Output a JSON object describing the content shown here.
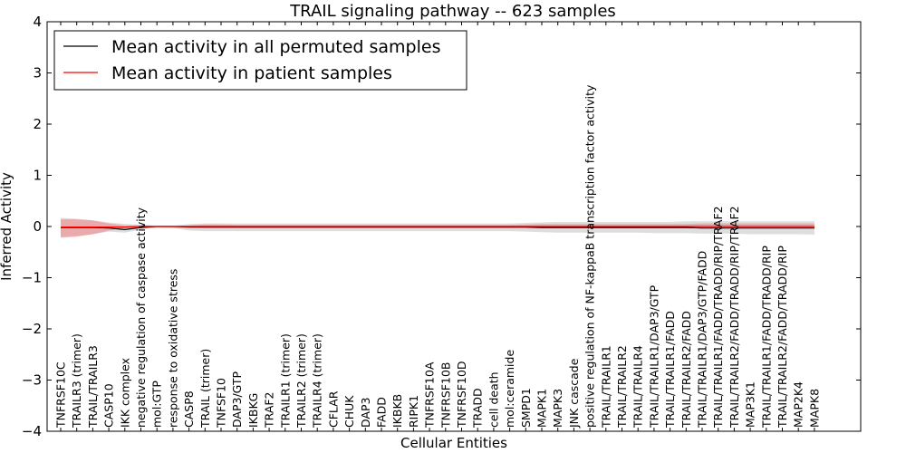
{
  "chart_data": {
    "type": "line",
    "title": "TRAIL signaling pathway -- 623 samples",
    "xlabel": "Cellular Entities",
    "ylabel": "Inferred Activity",
    "ylim": [
      -4,
      4
    ],
    "yticks": [
      -4,
      -3,
      -2,
      -1,
      0,
      1,
      2,
      3,
      4
    ],
    "ytick_labels": [
      "−4",
      "−3",
      "−2",
      "−1",
      "0",
      "1",
      "2",
      "3",
      "4"
    ],
    "legend_position": "top-left",
    "categories": [
      "TNFRSF10C",
      "TRAILR3 (trimer)",
      "TRAIL/TRAILR3",
      "CASP10",
      "IKK complex",
      "negative regulation of caspase activity",
      "mol:GTP",
      "response to oxidative stress",
      "CASP8",
      "TRAIL (trimer)",
      "TNFSF10",
      "DAP3/GTP",
      "IKBKG",
      "TRAF2",
      "TRAILR1 (trimer)",
      "TRAILR2 (trimer)",
      "TRAILR4 (trimer)",
      "CFLAR",
      "CHUK",
      "DAP3",
      "FADD",
      "IKBKB",
      "RIPK1",
      "TNFRSF10A",
      "TNFRSF10B",
      "TNFRSF10D",
      "TRADD",
      "cell death",
      "mol:ceramide",
      "SMPD1",
      "MAPK1",
      "MAPK3",
      "JNK cascade",
      "positive regulation of NF-kappaB transcription factor activity",
      "TRAIL/TRAILR1",
      "TRAIL/TRAILR2",
      "TRAIL/TRAILR4",
      "TRAIL/TRAILR1/DAP3/GTP",
      "TRAIL/TRAILR1/FADD",
      "TRAIL/TRAILR2/FADD",
      "TRAIL/TRAILR1/DAP3/GTP/FADD",
      "TRAIL/TRAILR1/FADD/TRADD/RIP/TRAF2",
      "TRAIL/TRAILR2/FADD/TRADD/RIP/TRAF2",
      "MAP3K1",
      "TRAIL/TRAILR1/FADD/TRADD/RIP",
      "TRAIL/TRAILR2/FADD/TRADD/RIP",
      "MAP2K4",
      "MAPK8"
    ],
    "series": [
      {
        "name": "Mean activity in all permuted samples",
        "color": "#000000",
        "band_color": "#c8c8c8",
        "values": [
          -0.02,
          -0.02,
          -0.02,
          -0.03,
          -0.06,
          -0.02,
          0.0,
          0.0,
          -0.01,
          -0.01,
          -0.01,
          -0.01,
          -0.01,
          -0.01,
          -0.01,
          -0.01,
          -0.01,
          -0.01,
          -0.01,
          -0.01,
          -0.01,
          -0.01,
          -0.01,
          -0.01,
          -0.01,
          -0.01,
          -0.01,
          -0.01,
          -0.01,
          -0.01,
          -0.02,
          -0.02,
          -0.02,
          -0.02,
          -0.02,
          -0.02,
          -0.02,
          -0.02,
          -0.02,
          -0.02,
          -0.03,
          -0.03,
          -0.03,
          -0.03,
          -0.03,
          -0.03,
          -0.03,
          -0.03
        ],
        "band_upper": [
          0.17,
          0.15,
          0.12,
          0.08,
          0.05,
          0.04,
          0.02,
          0.02,
          0.05,
          0.06,
          0.06,
          0.06,
          0.06,
          0.06,
          0.06,
          0.06,
          0.06,
          0.06,
          0.06,
          0.06,
          0.06,
          0.06,
          0.06,
          0.06,
          0.06,
          0.06,
          0.06,
          0.06,
          0.06,
          0.07,
          0.08,
          0.09,
          0.09,
          0.09,
          0.09,
          0.09,
          0.09,
          0.09,
          0.09,
          0.1,
          0.1,
          0.1,
          0.1,
          0.1,
          0.1,
          0.1,
          0.1,
          0.1
        ],
        "band_lower": [
          -0.2,
          -0.18,
          -0.15,
          -0.1,
          -0.12,
          -0.06,
          -0.02,
          -0.03,
          -0.08,
          -0.09,
          -0.09,
          -0.09,
          -0.09,
          -0.09,
          -0.09,
          -0.09,
          -0.09,
          -0.09,
          -0.09,
          -0.09,
          -0.09,
          -0.09,
          -0.09,
          -0.09,
          -0.09,
          -0.09,
          -0.09,
          -0.09,
          -0.09,
          -0.1,
          -0.11,
          -0.12,
          -0.12,
          -0.12,
          -0.12,
          -0.12,
          -0.12,
          -0.13,
          -0.13,
          -0.13,
          -0.14,
          -0.14,
          -0.14,
          -0.15,
          -0.15,
          -0.15,
          -0.15,
          -0.16
        ]
      },
      {
        "name": "Mean activity in patient samples",
        "color": "#ff0000",
        "band_color": "#f08080",
        "values": [
          -0.01,
          -0.01,
          -0.01,
          -0.01,
          -0.01,
          0.0,
          0.0,
          0.0,
          0.0,
          0.0,
          0.0,
          0.0,
          0.0,
          0.0,
          0.0,
          0.0,
          0.0,
          0.0,
          0.0,
          0.0,
          0.0,
          0.0,
          0.0,
          0.0,
          0.0,
          0.0,
          0.0,
          0.0,
          0.0,
          0.0,
          0.0,
          0.0,
          0.0,
          0.0,
          0.0,
          0.0,
          0.0,
          0.0,
          0.0,
          0.0,
          0.0,
          0.0,
          0.0,
          0.0,
          0.0,
          0.0,
          0.0,
          0.0
        ],
        "band_upper": [
          0.14,
          0.14,
          0.12,
          0.06,
          0.02,
          0.02,
          0.01,
          0.01,
          0.02,
          0.04,
          0.04,
          0.03,
          0.03,
          0.03,
          0.03,
          0.03,
          0.03,
          0.03,
          0.03,
          0.03,
          0.03,
          0.03,
          0.03,
          0.03,
          0.03,
          0.03,
          0.03,
          0.03,
          0.03,
          0.04,
          0.05,
          0.05,
          0.05,
          0.05,
          0.05,
          0.05,
          0.05,
          0.05,
          0.05,
          0.05,
          0.06,
          0.06,
          0.06,
          0.06,
          0.06,
          0.06,
          0.06,
          0.06
        ],
        "band_lower": [
          -0.22,
          -0.2,
          -0.15,
          -0.08,
          -0.03,
          -0.02,
          -0.01,
          -0.01,
          -0.02,
          -0.03,
          -0.03,
          -0.03,
          -0.03,
          -0.03,
          -0.03,
          -0.03,
          -0.03,
          -0.03,
          -0.03,
          -0.03,
          -0.03,
          -0.03,
          -0.03,
          -0.03,
          -0.03,
          -0.03,
          -0.03,
          -0.03,
          -0.03,
          -0.03,
          -0.03,
          -0.03,
          -0.03,
          -0.03,
          -0.03,
          -0.03,
          -0.03,
          -0.03,
          -0.03,
          -0.03,
          -0.03,
          -0.03,
          -0.03,
          -0.03,
          -0.03,
          -0.03,
          -0.03,
          -0.03
        ]
      }
    ]
  }
}
